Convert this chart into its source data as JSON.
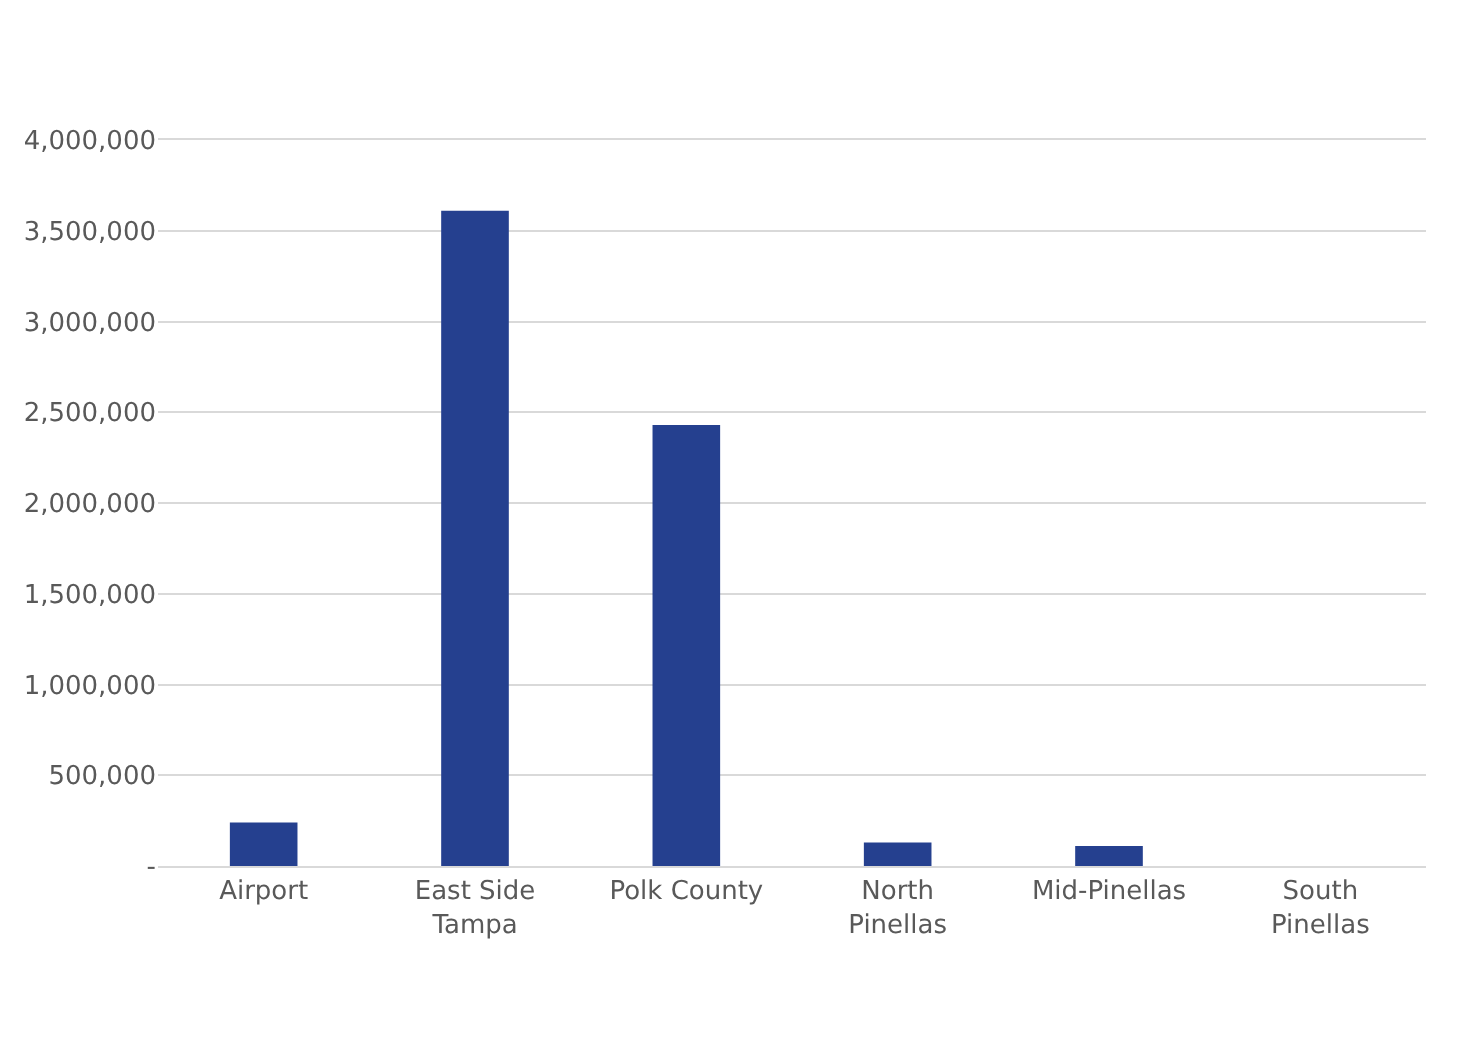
{
  "chart_data": {
    "type": "bar",
    "categories": [
      "Airport",
      "East Side\nTampa",
      "Polk County",
      "North\nPinellas",
      "Mid-Pinellas",
      "South\nPinellas"
    ],
    "values": [
      240000,
      3610000,
      2430000,
      130000,
      110000,
      null
    ],
    "color": "#25408f",
    "ylim": [
      0,
      4000000
    ],
    "yticks": [
      {
        "value": 0,
        "label": "-"
      },
      {
        "value": 500000,
        "label": "500,000"
      },
      {
        "value": 1000000,
        "label": "1,000,000"
      },
      {
        "value": 1500000,
        "label": "1,500,000"
      },
      {
        "value": 2000000,
        "label": "2,000,000"
      },
      {
        "value": 2500000,
        "label": "2,500,000"
      },
      {
        "value": 3000000,
        "label": "3,000,000"
      },
      {
        "value": 3500000,
        "label": "3,500,000"
      },
      {
        "value": 4000000,
        "label": "4,000,000"
      }
    ],
    "grid": "y",
    "legend": false
  }
}
